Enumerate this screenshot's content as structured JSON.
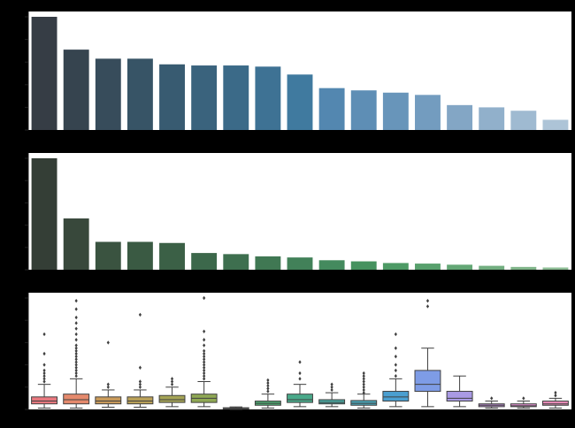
{
  "chart_data": [
    {
      "type": "bar",
      "palette": "Blues_d",
      "colors": [
        "#363d45",
        "#36444f",
        "#374c5b",
        "#375466",
        "#385b71",
        "#3a637d",
        "#3b6a88",
        "#3e7294",
        "#407a9f",
        "#5387b0",
        "#5e8eb5",
        "#6895ba",
        "#739cbf",
        "#83a6c5",
        "#91b0cb",
        "#9fbad1",
        "#adc4d7"
      ],
      "categories": [
        "",
        "",
        "",
        "",
        "",
        "",
        "",
        "",
        "",
        "",
        "",
        "",
        "",
        "",
        "",
        "",
        ""
      ],
      "values": [
        100,
        71,
        63,
        63,
        58,
        57,
        57,
        56,
        49,
        37,
        35,
        33,
        31,
        22,
        20,
        17,
        9
      ],
      "ylim": [
        0,
        100
      ],
      "grid": false
    },
    {
      "type": "bar",
      "palette": "Greens_d",
      "colors": [
        "#343e36",
        "#38483b",
        "#3a5340",
        "#3a5a43",
        "#3b6046",
        "#3c684b",
        "#3e6f4f",
        "#407853",
        "#428159",
        "#448a5e",
        "#46925f",
        "#4d9a65",
        "#58a06d",
        "#64a776",
        "#72ae80",
        "#80b58a",
        "#8ebd95"
      ],
      "categories": [
        "",
        "",
        "",
        "",
        "",
        "",
        "",
        "",
        "",
        "",
        "",
        "",
        "",
        "",
        "",
        "",
        ""
      ],
      "values": [
        100,
        46,
        25,
        25,
        24,
        15,
        14,
        12,
        11,
        8.5,
        7.5,
        6,
        5.5,
        4.5,
        3.5,
        2.5,
        2
      ],
      "ylim": [
        0,
        100
      ],
      "grid": false
    },
    {
      "type": "box",
      "colors": [
        "#e8787f",
        "#e58a6d",
        "#c99a5a",
        "#b9a058",
        "#a5a456",
        "#8fa854",
        "#6fab5a",
        "#4daa72",
        "#4aa98a",
        "#4aa6a0",
        "#4aa3b5",
        "#4b9fd0",
        "#7e9ce6",
        "#a99ae4",
        "#c792e2",
        "#df8ecf",
        "#e88cb8"
      ],
      "categories": [
        "",
        "",
        "",
        "",
        "",
        "",
        "",
        "",
        "",
        "",
        "",
        "",
        "",
        "",
        "",
        "",
        ""
      ],
      "boxes": [
        {
          "whislo": 0.5,
          "q1": 2,
          "med": 3,
          "q3": 4.5,
          "whishi": 9,
          "fliers": [
            10,
            11,
            12,
            13,
            14,
            16,
            20,
            27
          ]
        },
        {
          "whislo": 0.5,
          "q1": 2,
          "med": 3.5,
          "q3": 5.5,
          "whishi": 11,
          "fliers": [
            12,
            13,
            14,
            15,
            16,
            17,
            18,
            19,
            20,
            21,
            22,
            23,
            25,
            27,
            29,
            31,
            33,
            36,
            39
          ]
        },
        {
          "whislo": 0.8,
          "q1": 2,
          "med": 3,
          "q3": 4.5,
          "whishi": 7,
          "fliers": [
            8,
            9,
            24
          ]
        },
        {
          "whislo": 0.8,
          "q1": 2,
          "med": 3,
          "q3": 4.5,
          "whishi": 7,
          "fliers": [
            8,
            9,
            10,
            15,
            34
          ]
        },
        {
          "whislo": 1,
          "q1": 2.5,
          "med": 3.5,
          "q3": 5,
          "whishi": 8,
          "fliers": [
            9,
            10,
            11
          ]
        },
        {
          "whislo": 1,
          "q1": 2.5,
          "med": 4,
          "q3": 5.5,
          "whishi": 10,
          "fliers": [
            11,
            12,
            13,
            14,
            15,
            16,
            17,
            18,
            19,
            20,
            21,
            23,
            25,
            28,
            40
          ]
        },
        {
          "whislo": 0,
          "q1": 0.2,
          "med": 0.4,
          "q3": 0.6,
          "whishi": 0.9,
          "fliers": []
        },
        {
          "whislo": 0.5,
          "q1": 1.5,
          "med": 2.2,
          "q3": 3,
          "whishi": 5.5,
          "fliers": [
            6.5,
            7.5,
            8.5,
            9.5,
            10.5
          ]
        },
        {
          "whislo": 1,
          "q1": 2.5,
          "med": 3.5,
          "q3": 5.5,
          "whishi": 9,
          "fliers": [
            11,
            13,
            17
          ]
        },
        {
          "whislo": 1,
          "q1": 2,
          "med": 2.5,
          "q3": 3.5,
          "whishi": 6,
          "fliers": [
            7,
            8,
            9
          ]
        },
        {
          "whislo": 0.5,
          "q1": 1.5,
          "med": 2.2,
          "q3": 3.2,
          "whishi": 5.5,
          "fliers": [
            6,
            7,
            8,
            9,
            10,
            11,
            12,
            13
          ]
        },
        {
          "whislo": 1,
          "q1": 3,
          "med": 4.5,
          "q3": 6.5,
          "whishi": 11,
          "fliers": [
            12,
            14,
            16,
            19,
            22,
            27
          ]
        },
        {
          "whislo": 1,
          "q1": 6.5,
          "med": 9,
          "q3": 14,
          "whishi": 22,
          "fliers": [
            37,
            39
          ]
        },
        {
          "whislo": 1,
          "q1": 3,
          "med": 4,
          "q3": 6.5,
          "whishi": 12,
          "fliers": []
        },
        {
          "whislo": 0.5,
          "q1": 1,
          "med": 1.5,
          "q3": 2,
          "whishi": 3,
          "fliers": [
            4
          ]
        },
        {
          "whislo": 0.5,
          "q1": 1,
          "med": 1.3,
          "q3": 2,
          "whishi": 3,
          "fliers": [
            4
          ]
        },
        {
          "whislo": 0.5,
          "q1": 1.5,
          "med": 2,
          "q3": 3,
          "whishi": 4,
          "fliers": [
            5,
            6
          ]
        }
      ],
      "ylim": [
        0,
        40
      ],
      "grid": false
    }
  ]
}
